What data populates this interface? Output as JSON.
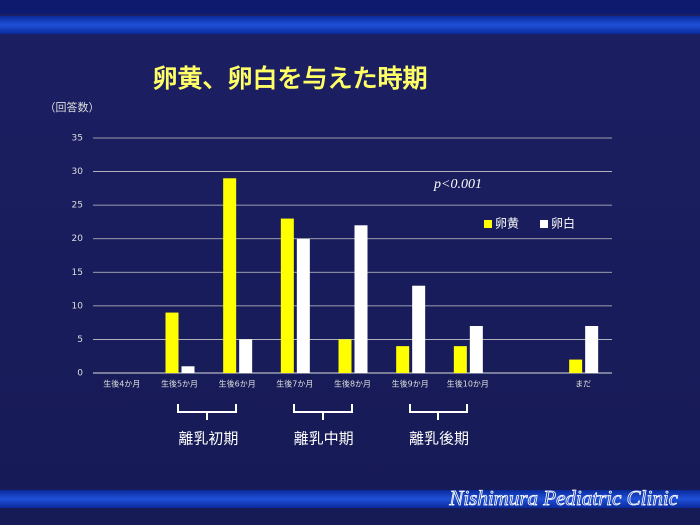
{
  "chart_data": {
    "type": "bar",
    "title": "卵黄、卵白を与えた時期",
    "y_label": "（回答数）",
    "categories": [
      "生後4か月",
      "生後5か月",
      "生後6か月",
      "生後7か月",
      "生後8か月",
      "生後9か月",
      "生後10か月",
      null,
      "まだ"
    ],
    "series": [
      {
        "name": "卵黄",
        "color": "#ffff00",
        "values": [
          0,
          9,
          29,
          23,
          5,
          4,
          4,
          null,
          2
        ]
      },
      {
        "name": "卵白",
        "color": "#ffffff",
        "values": [
          0,
          1,
          5,
          20,
          22,
          13,
          7,
          null,
          7
        ]
      }
    ],
    "ylim": [
      0,
      35
    ],
    "yticks": [
      0,
      5,
      10,
      15,
      20,
      25,
      30,
      35
    ],
    "grid": true,
    "annotation": "p<0.001",
    "group_labels": [
      "離乳初期",
      "離乳中期",
      "離乳後期"
    ],
    "footer": "Nishimura Pediatric Clinic"
  }
}
